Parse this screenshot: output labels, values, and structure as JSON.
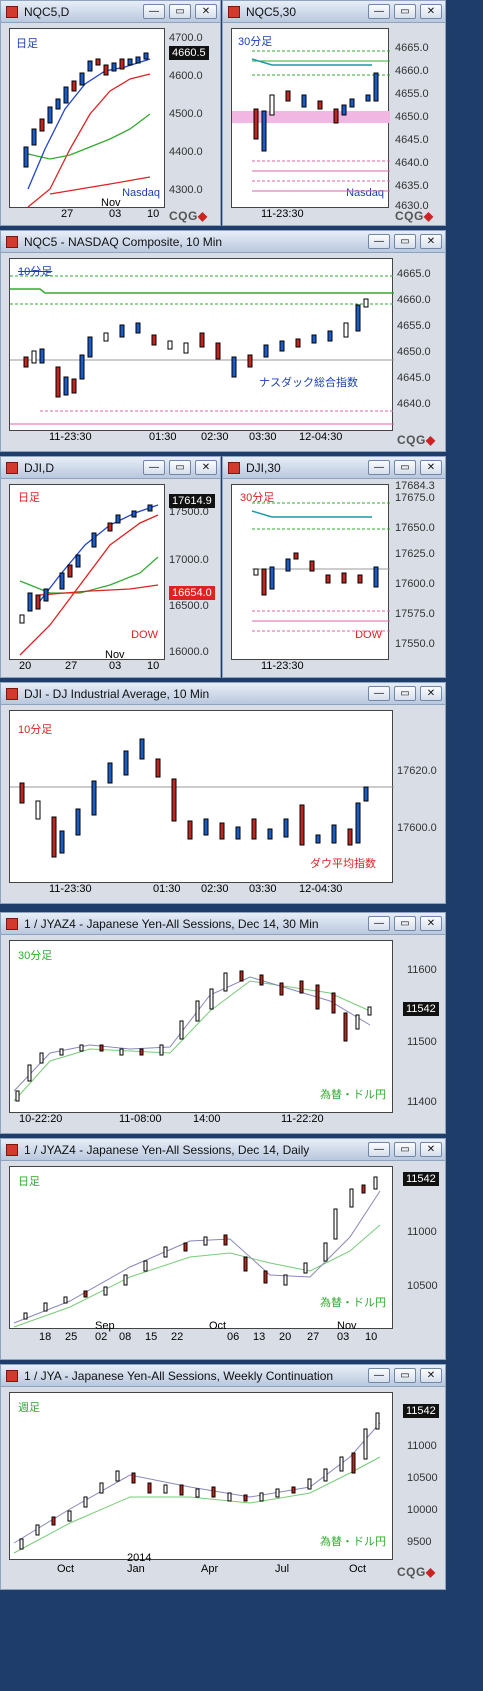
{
  "windows": [
    {
      "title": "NQC5,D",
      "period": "日足",
      "watermark": "Nasdaq",
      "yticks": [
        "4700.0",
        "4600.0",
        "4500.0",
        "4400.0",
        "4300.0"
      ],
      "price": "4660.5",
      "xticks": [
        "27",
        "Nov",
        "03",
        "10"
      ]
    },
    {
      "title": "NQC5,30",
      "period": "30分足",
      "watermark": "Nasdaq",
      "yticks": [
        "4665.0",
        "4660.0",
        "4655.0",
        "4650.0",
        "4645.0",
        "4640.0",
        "4635.0",
        "4630.0"
      ],
      "xticks": [
        "11-23:30"
      ]
    },
    {
      "title": "NQC5 - NASDAQ Composite, 10 Min",
      "period": "10分足",
      "watermark": "ナスダック総合指数",
      "yticks": [
        "4665.0",
        "4660.0",
        "4655.0",
        "4650.0",
        "4645.0",
        "4640.0"
      ],
      "xticks": [
        "11-23:30",
        "01:30",
        "02:30",
        "03:30",
        "12-04:30"
      ]
    },
    {
      "title": "DJI,D",
      "period": "日足",
      "watermark": "DOW",
      "yticks": [
        "17614.9",
        "17500.0",
        "17000.0",
        "16654.0",
        "16500.0",
        "16000.0"
      ],
      "price": "17614.9",
      "price2": "16654.0",
      "xticks": [
        "20",
        "27",
        "Nov",
        "03",
        "10"
      ]
    },
    {
      "title": "DJI,30",
      "period": "30分足",
      "watermark": "DOW",
      "yticks": [
        "17684.3",
        "17675.0",
        "17650.0",
        "17625.0",
        "17600.0",
        "17575.0",
        "17550.0"
      ],
      "xticks": [
        "11-23:30"
      ]
    },
    {
      "title": "DJI - DJ Industrial Average, 10 Min",
      "period": "10分足",
      "watermark": "ダウ平均指数",
      "yticks": [
        "17620.0",
        "17600.0"
      ],
      "xticks": [
        "11-23:30",
        "01:30",
        "02:30",
        "03:30",
        "12-04:30"
      ]
    },
    {
      "title": "1 / JYAZ4 - Japanese Yen-All Sessions, Dec 14, 30 Min",
      "period": "30分足",
      "watermark": "為替・ドル円",
      "yticks": [
        "11600",
        "11542",
        "11500",
        "11400"
      ],
      "price": "11542",
      "xticks": [
        "10-22:20",
        "11-08:00",
        "14:00",
        "11-22:20"
      ]
    },
    {
      "title": "1 / JYAZ4 - Japanese Yen-All Sessions, Dec 14, Daily",
      "period": "日足",
      "watermark": "為替・ドル円",
      "yticks": [
        "11542",
        "11000",
        "10500"
      ],
      "price": "11542",
      "xticks": [
        "18",
        "25",
        "Sep",
        "02",
        "08",
        "15",
        "22",
        "Oct",
        "06",
        "13",
        "20",
        "27",
        "Nov",
        "03",
        "10"
      ]
    },
    {
      "title": "1 / JYA - Japanese Yen-All Sessions, Weekly Continuation",
      "period": "週足",
      "watermark": "為替・ドル円",
      "yticks": [
        "11542",
        "11000",
        "10500",
        "10000",
        "9500"
      ],
      "price": "11542",
      "xticks": [
        "Oct",
        "2014",
        "Jan",
        "Apr",
        "Jul",
        "Oct"
      ]
    }
  ],
  "logo": "CQG",
  "buttons": {
    "min": "—",
    "restore": "▭",
    "close": "✕"
  },
  "colors": {
    "up": "#1a5cc8",
    "down": "#c2261e",
    "ma_red": "#d22",
    "ma_green": "#3a3",
    "ma_blue": "#24c"
  }
}
